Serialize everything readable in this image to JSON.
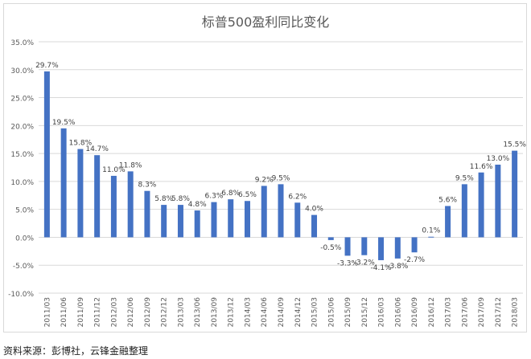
{
  "chart_data": {
    "type": "bar",
    "title": "标普500盈利同比变化",
    "categories": [
      "2011/03",
      "2011/06",
      "2011/09",
      "2011/12",
      "2012/03",
      "2012/06",
      "2012/09",
      "2012/12",
      "2013/03",
      "2013/06",
      "2013/09",
      "2013/12",
      "2014/03",
      "2014/06",
      "2014/09",
      "2014/12",
      "2015/03",
      "2015/06",
      "2015/09",
      "2015/12",
      "2016/03",
      "2016/06",
      "2016/09",
      "2016/12",
      "2017/03",
      "2017/06",
      "2017/09",
      "2017/12",
      "2018/03"
    ],
    "values": [
      29.7,
      19.5,
      15.8,
      14.7,
      11.0,
      11.8,
      8.3,
      5.8,
      5.8,
      4.8,
      6.3,
      6.8,
      6.5,
      9.2,
      9.5,
      6.2,
      4.0,
      -0.5,
      -3.3,
      -3.2,
      -4.1,
      -3.8,
      -2.7,
      0.1,
      5.6,
      9.5,
      11.6,
      13.0,
      15.5
    ],
    "data_labels": [
      "29.7%",
      "19.5%",
      "15.8%",
      "14.7%",
      "11.0%",
      "11.8%",
      "8.3%",
      "5.8%",
      "5.8%",
      "4.8%",
      "6.3%",
      "6.8%",
      "6.5%",
      "9.2%",
      "9.5%",
      "6.2%",
      "4.0%",
      "-0.5%",
      "-3.3%",
      "-3.2%",
      "-4.1%",
      "-3.8%",
      "-2.7%",
      "0.1%",
      "5.6%",
      "9.5%",
      "11.6%",
      "13.0%",
      "15.5%"
    ],
    "yticks": [
      "-10.0%",
      "-5.0%",
      "0.0%",
      "5.0%",
      "10.0%",
      "15.0%",
      "20.0%",
      "25.0%",
      "30.0%",
      "35.0%"
    ],
    "ylim": [
      -10,
      35
    ],
    "grid": true,
    "bar_color": "#4472c4"
  },
  "footer": {
    "source": "资料来源：彭博社，云锋金融整理"
  }
}
